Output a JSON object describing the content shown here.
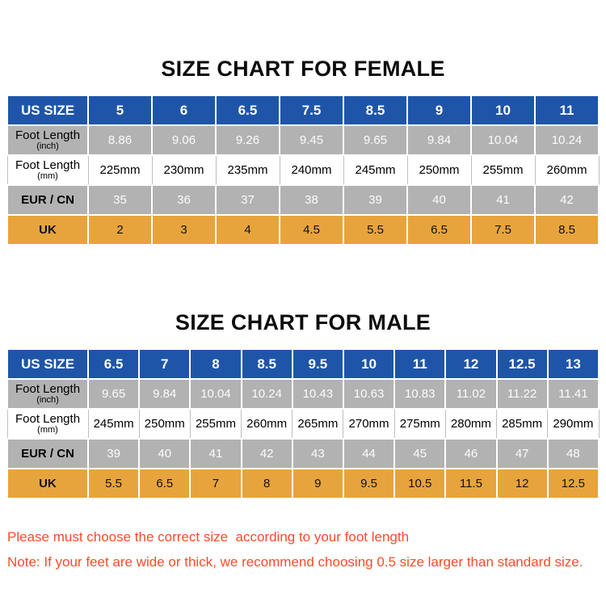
{
  "chart_data": [
    {
      "type": "table",
      "id": "female",
      "title": "SIZE CHART FOR FEMALE",
      "rows": [
        {
          "style": "blue",
          "bold_label": true,
          "label": "US SIZE",
          "sublabel": "",
          "values": [
            "5",
            "6",
            "6.5",
            "7.5",
            "8.5",
            "9",
            "10",
            "11"
          ]
        },
        {
          "style": "gray",
          "bold_label": false,
          "label": "Foot Length",
          "sublabel": "(inch)",
          "values": [
            "8.86",
            "9.06",
            "9.26",
            "9.45",
            "9.65",
            "9.84",
            "10.04",
            "10.24"
          ]
        },
        {
          "style": "white",
          "bold_label": false,
          "label": "Foot Length",
          "sublabel": "(mm)",
          "values": [
            "225mm",
            "230mm",
            "235mm",
            "240mm",
            "245mm",
            "250mm",
            "255mm",
            "260mm"
          ]
        },
        {
          "style": "gray",
          "bold_label": true,
          "label": "EUR / CN",
          "sublabel": "",
          "values": [
            "35",
            "36",
            "37",
            "38",
            "39",
            "40",
            "41",
            "42"
          ]
        },
        {
          "style": "orange",
          "bold_label": true,
          "label": "UK",
          "sublabel": "",
          "values": [
            "2",
            "3",
            "4",
            "4.5",
            "5.5",
            "6.5",
            "7.5",
            "8.5"
          ]
        }
      ]
    },
    {
      "type": "table",
      "id": "male",
      "title": "SIZE CHART FOR MALE",
      "rows": [
        {
          "style": "blue",
          "bold_label": true,
          "label": "US SIZE",
          "sublabel": "",
          "values": [
            "6.5",
            "7",
            "8",
            "8.5",
            "9.5",
            "10",
            "11",
            "12",
            "12.5",
            "13"
          ]
        },
        {
          "style": "gray",
          "bold_label": false,
          "label": "Foot Length",
          "sublabel": "(inch)",
          "values": [
            "9.65",
            "9.84",
            "10.04",
            "10.24",
            "10.43",
            "10.63",
            "10.83",
            "11.02",
            "11.22",
            "11.41"
          ]
        },
        {
          "style": "white",
          "bold_label": false,
          "label": "Foot Length",
          "sublabel": "(mm)",
          "values": [
            "245mm",
            "250mm",
            "255mm",
            "260mm",
            "265mm",
            "270mm",
            "275mm",
            "280mm",
            "285mm",
            "290mm"
          ]
        },
        {
          "style": "gray",
          "bold_label": true,
          "label": "EUR / CN",
          "sublabel": "",
          "values": [
            "39",
            "40",
            "41",
            "42",
            "43",
            "44",
            "45",
            "46",
            "47",
            "48"
          ]
        },
        {
          "style": "orange",
          "bold_label": true,
          "label": "UK",
          "sublabel": "",
          "values": [
            "5.5",
            "6.5",
            "7",
            "8",
            "9",
            "9.5",
            "10.5",
            "11.5",
            "12",
            "12.5"
          ]
        }
      ]
    }
  ],
  "notes": [
    "Please must choose the correct size  according to your foot length",
    "Note: If your feet are wide or thick, we recommend choosing 0.5 size larger than standard size."
  ],
  "colors": {
    "header_blue": "#1f55a8",
    "row_gray": "#b2b2b2",
    "uk_orange": "#e7a43c",
    "note_red": "#fb4b28"
  }
}
